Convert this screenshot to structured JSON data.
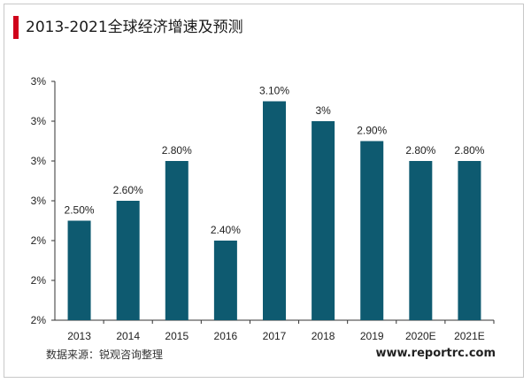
{
  "header": {
    "title": "2013-2021全球经济增速及预测"
  },
  "footer": {
    "source": "数据来源：锐观咨询整理",
    "website": "www.reportrc.com"
  },
  "colors": {
    "bar": "#0e5a70",
    "accent": "#d0021b",
    "axis": "#333333"
  },
  "chart_data": {
    "type": "bar",
    "title": "2013-2021全球经济增速及预测",
    "xlabel": "",
    "ylabel": "",
    "categories": [
      "2013",
      "2014",
      "2015",
      "2016",
      "2017",
      "2018",
      "2019",
      "2020E",
      "2021E"
    ],
    "values": [
      2.5,
      2.6,
      2.8,
      2.4,
      3.1,
      3.0,
      2.9,
      2.8,
      2.8
    ],
    "data_labels": [
      "2.50%",
      "2.60%",
      "2.80%",
      "2.40%",
      "3.10%",
      "3%",
      "2.90%",
      "2.80%",
      "2.80%"
    ],
    "ylim": [
      2.0,
      3.2
    ],
    "y_ticks": [
      2.0,
      2.2,
      2.4,
      2.6,
      2.8,
      3.0,
      3.2
    ],
    "y_tick_labels": [
      "2%",
      "2%",
      "2%",
      "3%",
      "3%",
      "3%",
      "3%"
    ],
    "grid": false,
    "legend": "none"
  }
}
